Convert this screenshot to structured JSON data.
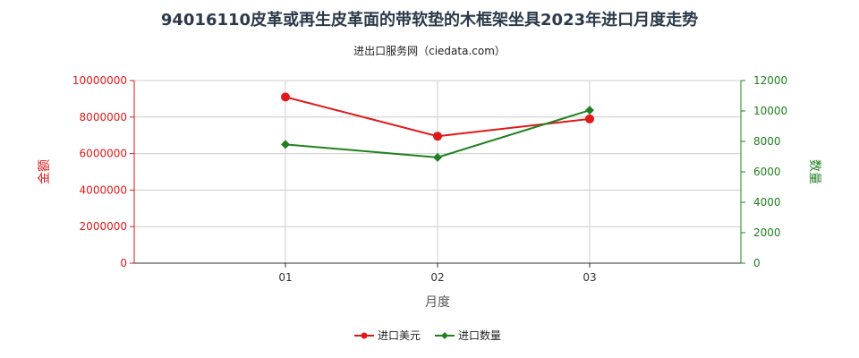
{
  "header": {
    "title": "94016110皮革或再生皮革面的带软垫的木框架坐具2023年进口月度走势",
    "subtitle": "进出口服务网（ciedata.com）"
  },
  "colors": {
    "amount": "#e01818",
    "quantity": "#208020",
    "grid": "#cccccc"
  },
  "chart_data": {
    "type": "line",
    "categories": [
      "01",
      "02",
      "03"
    ],
    "xlabel": "月度",
    "ylabel_left": "金额",
    "ylabel_right": "数量",
    "ylim_left": [
      0,
      10000000
    ],
    "ylim_right": [
      0,
      12000
    ],
    "yticks_left": [
      0,
      2000000,
      4000000,
      6000000,
      8000000,
      10000000
    ],
    "yticks_right": [
      0,
      2000,
      4000,
      6000,
      8000,
      10000,
      12000
    ],
    "grid": true,
    "legend_position": "bottom",
    "series": [
      {
        "name": "进口美元",
        "axis": "left",
        "values": [
          9100000,
          6950000,
          7900000
        ]
      },
      {
        "name": "进口数量",
        "axis": "right",
        "values": [
          7800,
          6950,
          10050
        ]
      }
    ]
  }
}
